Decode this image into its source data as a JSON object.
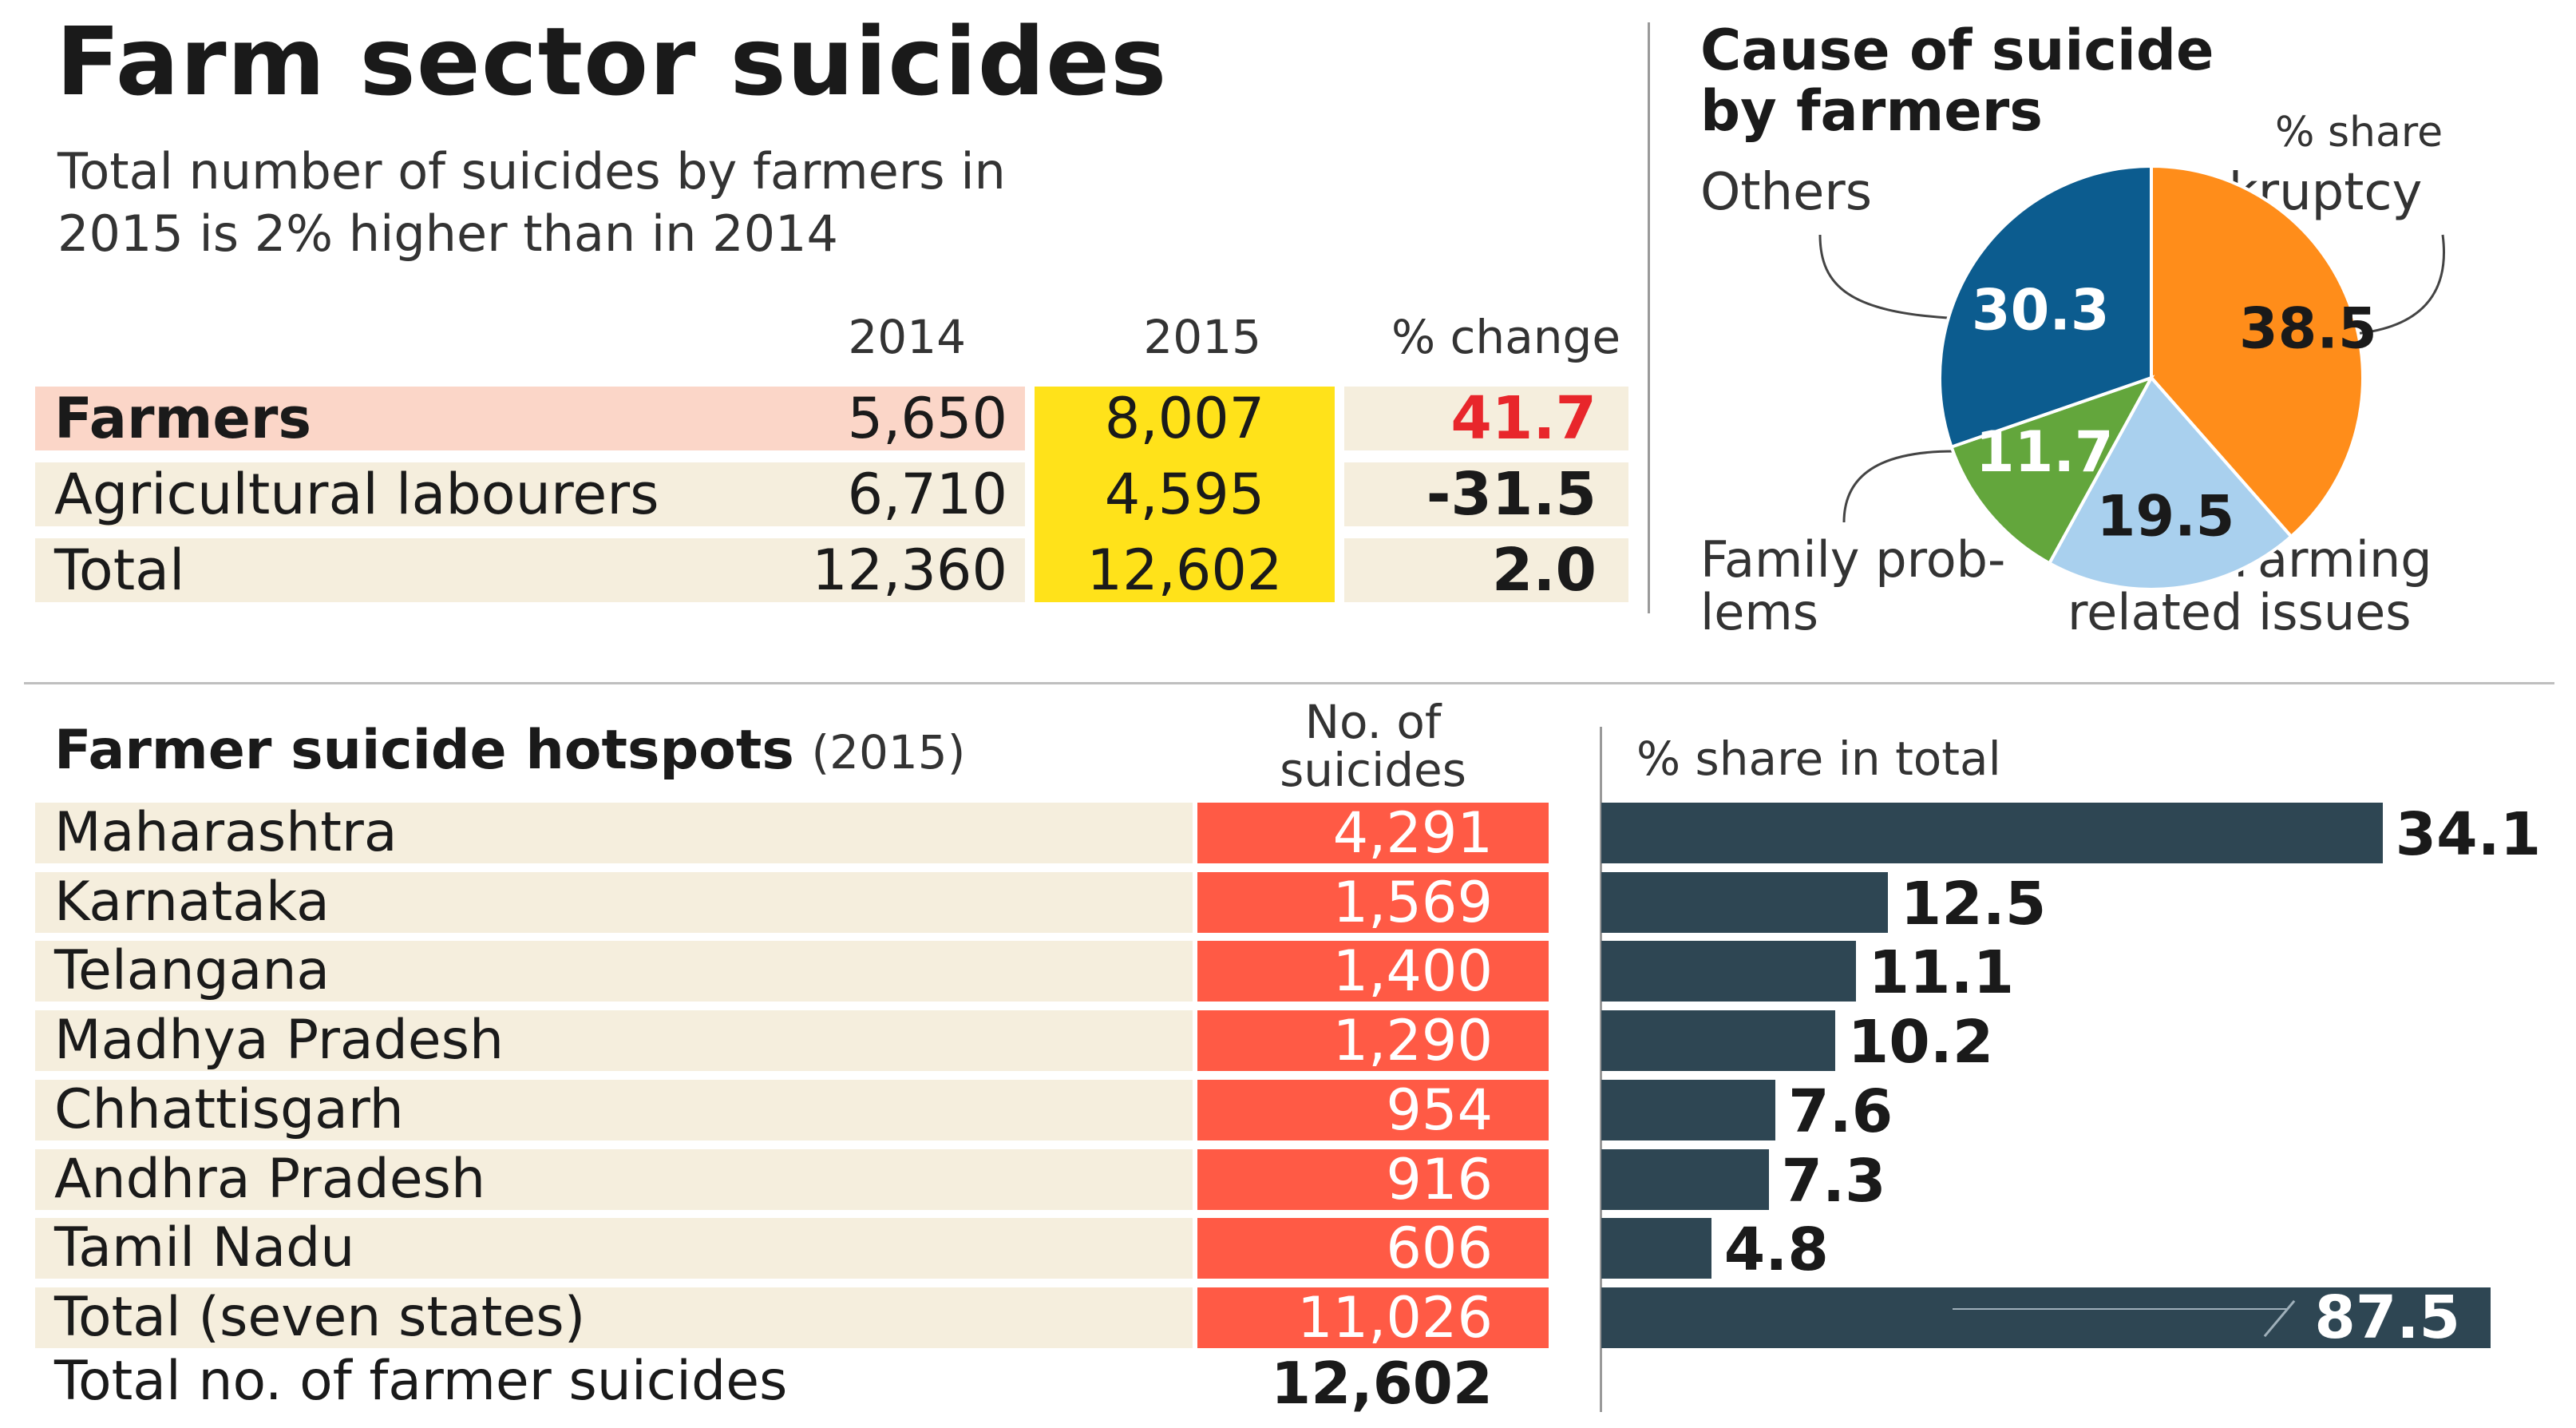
{
  "title": "Farm sector suicides",
  "subtitle_line1": "Total number of suicides by farmers in",
  "subtitle_line2": "2015 is 2% higher than in 2014",
  "colors": {
    "accent_red": "#ff5a45",
    "highlight_yellow": "#ffe21a",
    "row_beige": "#f5eedd",
    "row_pink": "#fbd6c8",
    "bar_dark": "#2e4653",
    "change_red": "#e8262b",
    "pie_blue": "#0c5c8f",
    "pie_orange": "#ff8d1a",
    "pie_green": "#63a63c",
    "pie_lightblue": "#a9d0ee"
  },
  "table": {
    "headers": [
      "2014",
      "2015",
      "% change"
    ],
    "rows": [
      {
        "label": "Farmers",
        "v2014": "5,650",
        "v2015": "8,007",
        "change": "41.7"
      },
      {
        "label": "Agricultural labourers",
        "v2014": "6,710",
        "v2015": "4,595",
        "change": "-31.5"
      },
      {
        "label": "Total",
        "v2014": "12,360",
        "v2015": "12,602",
        "change": "2.0"
      }
    ]
  },
  "pie": {
    "title_line1": "Cause of suicide",
    "title_line2": "by farmers",
    "unit_label": "% share",
    "label_others": "Others",
    "label_bankruptcy": "Bankruptcy",
    "label_family_1": "Family prob-",
    "label_family_2": "lems",
    "label_farming_1": "Farming",
    "label_farming_2": "related issues"
  },
  "hotspots": {
    "title": "Farmer suicide hotspots",
    "title_year": "(2015)",
    "col_no_1": "No. of",
    "col_no_2": "suicides",
    "col_share": "% share in total",
    "footer_label": "Total no. of farmer suicides",
    "footer_value": "12,602"
  },
  "chart_data": [
    {
      "type": "pie",
      "title": "Cause of suicide by farmers",
      "unit": "% share",
      "slices": [
        {
          "name": "Bankruptcy",
          "value": 38.5,
          "display": "38.5"
        },
        {
          "name": "Farming related issues",
          "value": 19.5,
          "display": "19.5"
        },
        {
          "name": "Family problems",
          "value": 11.7,
          "display": "11.7"
        },
        {
          "name": "Others",
          "value": 30.3,
          "display": "30.3"
        }
      ]
    },
    {
      "type": "bar",
      "title": "Farmer suicide hotspots (2015)",
      "xlabel": "% share in total",
      "categories": [
        "Maharashtra",
        "Karnataka",
        "Telangana",
        "Madhya Pradesh",
        "Chhattisgarh",
        "Andhra Pradesh",
        "Tamil Nadu",
        "Total (seven states)"
      ],
      "suicides": [
        "4,291",
        "1,569",
        "1,400",
        "1,290",
        "954",
        "916",
        "606",
        "11,026"
      ],
      "values": [
        34.1,
        12.5,
        11.1,
        10.2,
        7.6,
        7.3,
        4.8,
        87.5
      ],
      "labels": [
        "34.1",
        "12.5",
        "11.1",
        "10.2",
        "7.6",
        "7.3",
        "4.8",
        "87.5"
      ],
      "axis_break_on_last": true
    }
  ]
}
